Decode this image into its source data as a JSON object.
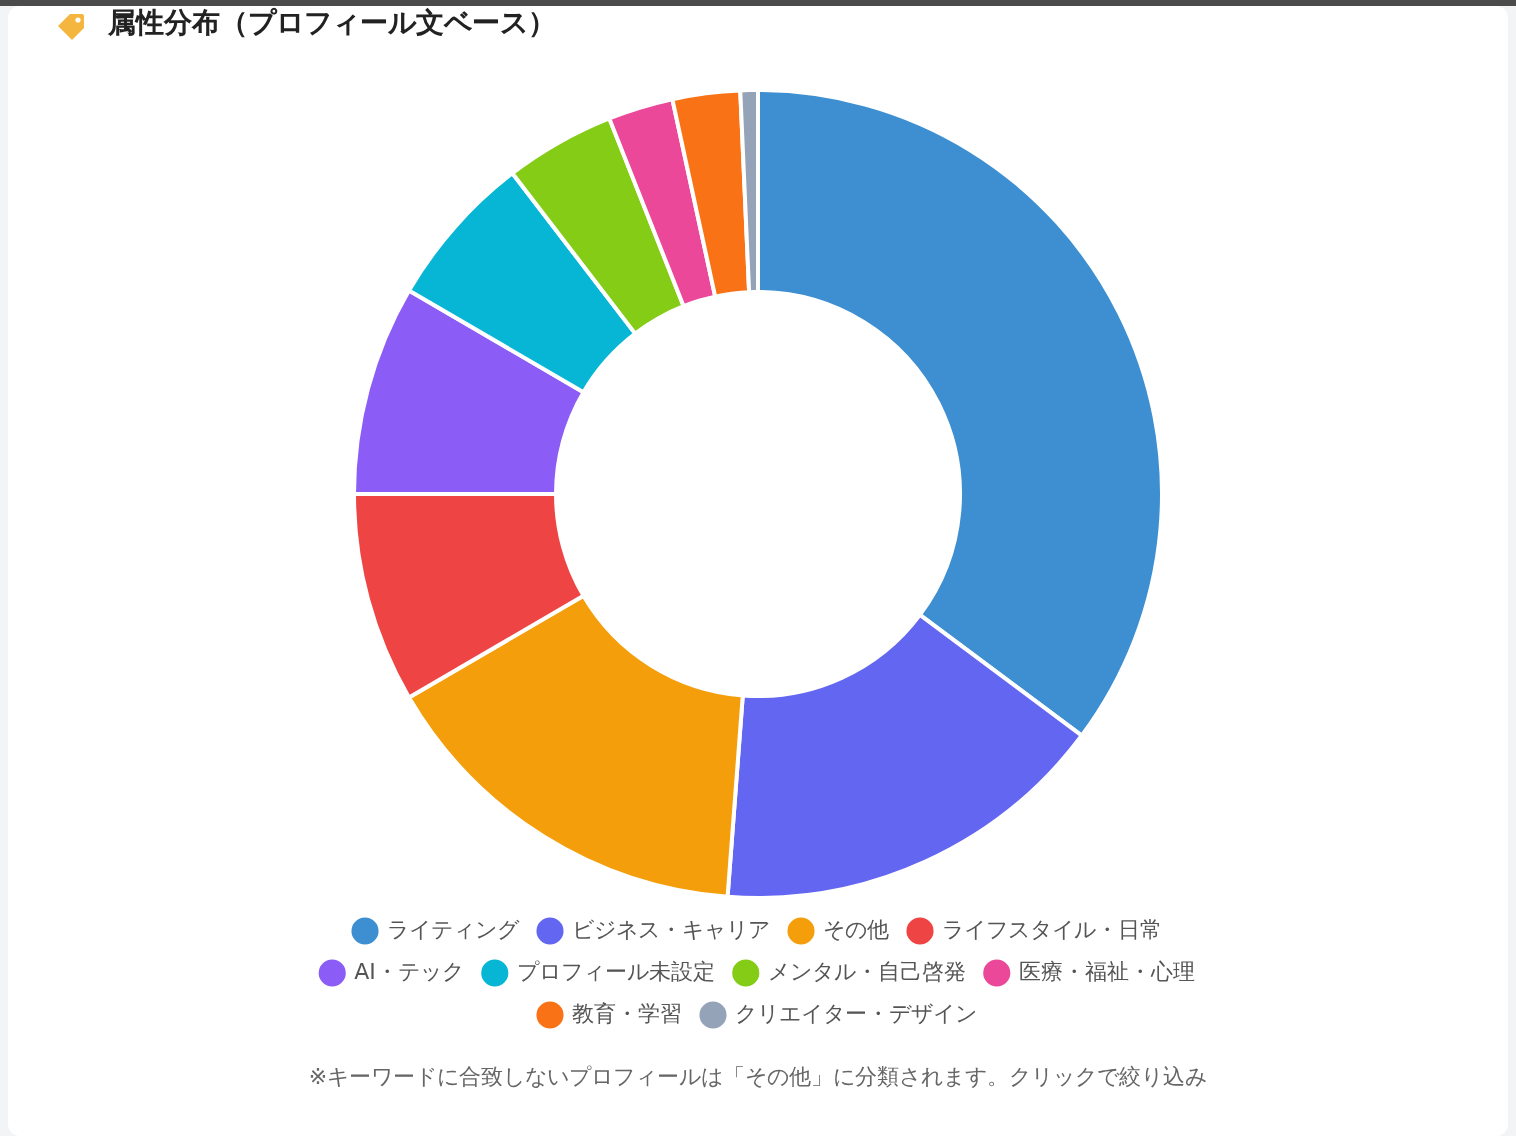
{
  "chart_data": {
    "type": "donut",
    "title": "属性分布（プロフィール文ベース）",
    "categories": [
      "ライティング",
      "ビジネス・キャリア",
      "その他",
      "ライフスタイル・日常",
      "AI・テック",
      "プロフィール未設定",
      "メンタル・自己啓発",
      "医療・福祉・心理",
      "教育・学習",
      "クリエイター・デザイン"
    ],
    "values": [
      35.2,
      16.0,
      15.4,
      8.4,
      8.4,
      6.2,
      4.4,
      2.6,
      2.7,
      0.7
    ],
    "colors": [
      "#3d8fd1",
      "#6366f1",
      "#f59e0b",
      "#ef4444",
      "#8b5cf6",
      "#06b6d4",
      "#84cc16",
      "#ec4899",
      "#f97316",
      "#94a3b8"
    ],
    "legend": "bottom",
    "annotations": [
      "※キーワードに合致しないプロフィールは「その他」に分類されます。クリックで絞り込み"
    ]
  }
}
